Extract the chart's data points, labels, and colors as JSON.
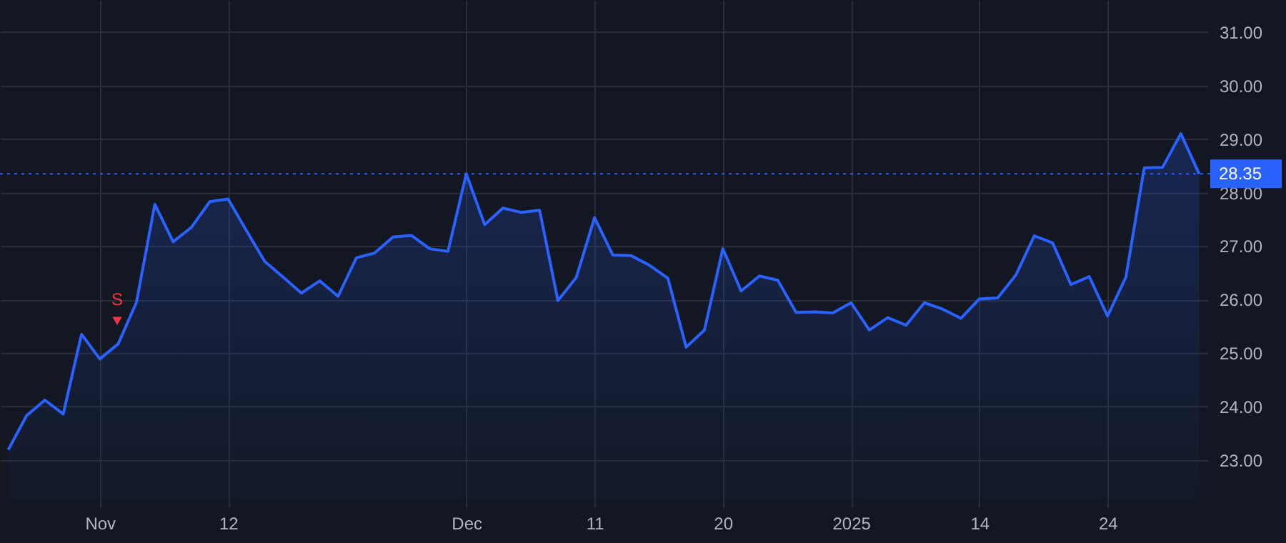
{
  "chart_data": {
    "type": "area",
    "categories": [
      null,
      null,
      null,
      null,
      null,
      "Nov",
      null,
      null,
      null,
      null,
      null,
      null,
      "12",
      null,
      null,
      null,
      null,
      null,
      null,
      null,
      null,
      null,
      null,
      null,
      null,
      "Dec",
      null,
      null,
      null,
      null,
      null,
      null,
      "11",
      null,
      null,
      null,
      null,
      null,
      null,
      "20",
      null,
      null,
      null,
      null,
      null,
      null,
      "2025",
      null,
      null,
      null,
      null,
      null,
      null,
      "14",
      null,
      null,
      null,
      null,
      null,
      null,
      "24",
      null,
      null,
      null,
      null,
      null
    ],
    "series": [
      {
        "color": "#2962ff",
        "values": [
          23.19,
          23.83,
          24.12,
          23.86,
          25.35,
          24.89,
          25.17,
          25.95,
          27.78,
          27.08,
          27.35,
          27.83,
          27.88,
          27.29,
          26.71,
          26.42,
          26.12,
          26.35,
          26.06,
          26.78,
          26.87,
          27.17,
          27.2,
          26.95,
          26.9,
          28.35,
          27.4,
          27.71,
          27.63,
          27.67,
          25.98,
          26.41,
          27.53,
          26.83,
          26.82,
          26.64,
          26.4,
          25.11,
          25.43,
          26.95,
          26.16,
          26.44,
          26.36,
          25.76,
          25.77,
          25.75,
          25.94,
          25.43,
          25.66,
          25.52,
          25.94,
          25.82,
          25.65,
          26.01,
          26.03,
          26.46,
          27.19,
          27.06,
          26.28,
          26.43,
          25.69,
          26.42,
          28.46,
          28.47,
          29.1,
          28.35
        ]
      }
    ],
    "ylim": [
      22.25,
      31.6
    ],
    "yticks": [
      {
        "value": 23,
        "label": "23.00"
      },
      {
        "value": 24,
        "label": "24.00"
      },
      {
        "value": 25,
        "label": "25.00"
      },
      {
        "value": 26,
        "label": "26.00"
      },
      {
        "value": 27,
        "label": "27.00"
      },
      {
        "value": 28,
        "label": "28.00"
      },
      {
        "value": 29,
        "label": "29.00"
      },
      {
        "value": 30,
        "label": "30.00"
      },
      {
        "value": 31,
        "label": "31.00"
      }
    ],
    "ref_lines": [
      {
        "axis": "y",
        "value": 28.35,
        "label": "28.35",
        "color": "#2962ff",
        "line_style": "dotted"
      }
    ],
    "annotations": [
      {
        "text": "S",
        "y": 25.6
      }
    ],
    "grid": true
  }
}
